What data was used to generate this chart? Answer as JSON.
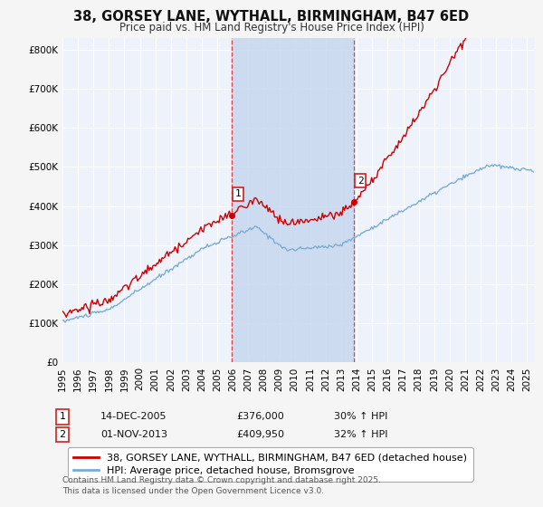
{
  "title": "38, GORSEY LANE, WYTHALL, BIRMINGHAM, B47 6ED",
  "subtitle": "Price paid vs. HM Land Registry's House Price Index (HPI)",
  "ylabel_ticks": [
    "£0",
    "£100K",
    "£200K",
    "£300K",
    "£400K",
    "£500K",
    "£600K",
    "£700K",
    "£800K"
  ],
  "ytick_values": [
    0,
    100000,
    200000,
    300000,
    400000,
    500000,
    600000,
    700000,
    800000
  ],
  "ylim": [
    0,
    830000
  ],
  "xlim_start": 1995.0,
  "xlim_end": 2025.5,
  "sale1_x": 2005.95,
  "sale1_y": 376000,
  "sale2_x": 2013.83,
  "sale2_y": 409950,
  "sale1_label": "1",
  "sale2_label": "2",
  "sale1_date": "14-DEC-2005",
  "sale1_price": "£376,000",
  "sale1_hpi": "30% ↑ HPI",
  "sale2_date": "01-NOV-2013",
  "sale2_price": "£409,950",
  "sale2_hpi": "32% ↑ HPI",
  "legend_line1": "38, GORSEY LANE, WYTHALL, BIRMINGHAM, B47 6ED (detached house)",
  "legend_line2": "HPI: Average price, detached house, Bromsgrove",
  "footnote": "Contains HM Land Registry data © Crown copyright and database right 2025.\nThis data is licensed under the Open Government Licence v3.0.",
  "line_color_red": "#cc0000",
  "line_color_blue": "#7aadd4",
  "background_plot": "#eef2fa",
  "background_fig": "#f5f5f5",
  "grid_color": "#ffffff",
  "vline_color": "#dd4444",
  "title_fontsize": 10.5,
  "subtitle_fontsize": 8.5,
  "tick_fontsize": 7.5,
  "legend_fontsize": 8,
  "annotation_fontsize": 8,
  "footnote_fontsize": 6.5
}
